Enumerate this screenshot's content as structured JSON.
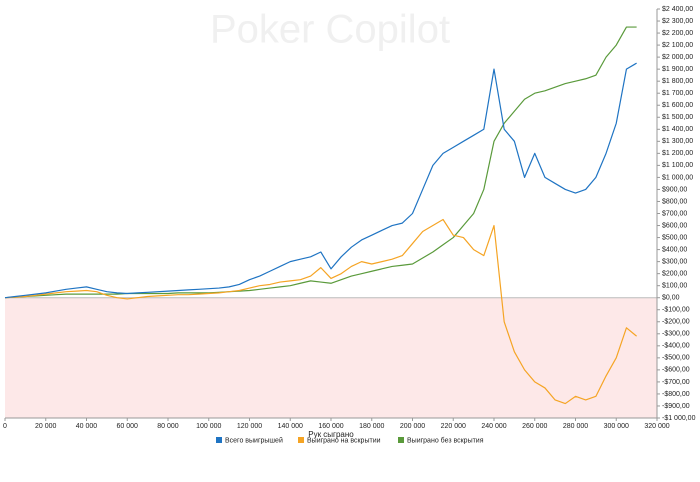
{
  "chart_data": {
    "type": "line",
    "watermark": "Poker Copilot",
    "x_label": "Рук сыграно",
    "x": [
      0,
      5000,
      10000,
      15000,
      20000,
      25000,
      30000,
      35000,
      40000,
      45000,
      50000,
      55000,
      60000,
      65000,
      70000,
      75000,
      80000,
      85000,
      90000,
      95000,
      100000,
      105000,
      110000,
      115000,
      120000,
      125000,
      130000,
      135000,
      140000,
      145000,
      150000,
      155000,
      160000,
      165000,
      170000,
      175000,
      180000,
      185000,
      190000,
      195000,
      200000,
      205000,
      210000,
      215000,
      220000,
      225000,
      230000,
      235000,
      240000,
      245000,
      250000,
      255000,
      260000,
      265000,
      270000,
      275000,
      280000,
      285000,
      290000,
      295000,
      300000,
      305000,
      310000
    ],
    "series": [
      {
        "name": "Всего выигрышей",
        "color": "#1f74c3",
        "values": [
          0,
          10,
          20,
          30,
          40,
          55,
          70,
          80,
          90,
          70,
          50,
          40,
          35,
          40,
          45,
          50,
          55,
          60,
          65,
          70,
          75,
          80,
          90,
          110,
          150,
          180,
          220,
          260,
          300,
          320,
          340,
          380,
          240,
          340,
          420,
          480,
          520,
          560,
          600,
          620,
          700,
          900,
          1100,
          1200,
          1250,
          1300,
          1350,
          1400,
          1900,
          1400,
          1300,
          1000,
          1200,
          1000,
          950,
          900,
          870,
          900,
          1000,
          1200,
          1450,
          1900,
          1950
        ]
      },
      {
        "name": "Выиграно на вскрытии",
        "color": "#f5a424",
        "values": [
          0,
          5,
          10,
          20,
          30,
          40,
          50,
          55,
          60,
          50,
          20,
          0,
          -10,
          0,
          10,
          15,
          20,
          25,
          25,
          30,
          35,
          40,
          50,
          60,
          80,
          100,
          110,
          130,
          140,
          150,
          180,
          250,
          160,
          200,
          260,
          300,
          280,
          300,
          320,
          350,
          450,
          550,
          600,
          650,
          520,
          500,
          400,
          350,
          600,
          -200,
          -450,
          -600,
          -700,
          -750,
          -850,
          -880,
          -820,
          -850,
          -820,
          -650,
          -500,
          -250,
          -320
        ]
      },
      {
        "name": "Выиграно без вскрытия",
        "color": "#5a9a3b",
        "values": [
          0,
          5,
          10,
          15,
          20,
          25,
          30,
          30,
          30,
          30,
          30,
          30,
          35,
          35,
          35,
          35,
          35,
          40,
          40,
          40,
          40,
          45,
          50,
          55,
          60,
          70,
          80,
          90,
          100,
          120,
          140,
          130,
          120,
          150,
          180,
          200,
          220,
          240,
          260,
          270,
          280,
          330,
          380,
          440,
          500,
          600,
          700,
          900,
          1300,
          1450,
          1550,
          1650,
          1700,
          1720,
          1750,
          1780,
          1800,
          1820,
          1850,
          2000,
          2100,
          2250,
          2250
        ]
      }
    ],
    "xlim": [
      0,
      320000
    ],
    "xticks": [
      0,
      {
        "value": 20000,
        "label": "20 000"
      },
      {
        "value": 40000,
        "label": "40 000"
      },
      {
        "value": 60000,
        "label": "60 000"
      },
      {
        "value": 80000,
        "label": "80 000"
      },
      {
        "value": 100000,
        "label": "100 000"
      },
      {
        "value": 120000,
        "label": "120 000"
      },
      {
        "value": 140000,
        "label": "140 000"
      },
      {
        "value": 160000,
        "label": "160 000"
      },
      {
        "value": 180000,
        "label": "180 000"
      },
      {
        "value": 200000,
        "label": "200 000"
      },
      {
        "value": 220000,
        "label": "220 000"
      },
      {
        "value": 240000,
        "label": "240 000"
      },
      {
        "value": 260000,
        "label": "260 000"
      },
      {
        "value": 280000,
        "label": "280 000"
      },
      {
        "value": 300000,
        "label": "300 000"
      },
      {
        "value": 320000,
        "label": "320 000"
      }
    ],
    "ylim": [
      -1000,
      2400
    ],
    "yticks": [
      {
        "value": 2400,
        "label": "$2 400,00"
      },
      {
        "value": 2300,
        "label": "$2 300,00"
      },
      {
        "value": 2200,
        "label": "$2 200,00"
      },
      {
        "value": 2100,
        "label": "$2 100,00"
      },
      {
        "value": 2000,
        "label": "$2 000,00"
      },
      {
        "value": 1900,
        "label": "$1 900,00"
      },
      {
        "value": 1800,
        "label": "$1 800,00"
      },
      {
        "value": 1700,
        "label": "$1 700,00"
      },
      {
        "value": 1600,
        "label": "$1 600,00"
      },
      {
        "value": 1500,
        "label": "$1 500,00"
      },
      {
        "value": 1400,
        "label": "$1 400,00"
      },
      {
        "value": 1300,
        "label": "$1 300,00"
      },
      {
        "value": 1200,
        "label": "$1 200,00"
      },
      {
        "value": 1100,
        "label": "$1 100,00"
      },
      {
        "value": 1000,
        "label": "$1 000,00"
      },
      {
        "value": 900,
        "label": "$900,00"
      },
      {
        "value": 800,
        "label": "$800,00"
      },
      {
        "value": 700,
        "label": "$700,00"
      },
      {
        "value": 600,
        "label": "$600,00"
      },
      {
        "value": 500,
        "label": "$500,00"
      },
      {
        "value": 400,
        "label": "$400,00"
      },
      {
        "value": 300,
        "label": "$300,00"
      },
      {
        "value": 200,
        "label": "$200,00"
      },
      {
        "value": 100,
        "label": "$100,00"
      },
      {
        "value": 0,
        "label": "$0,00"
      },
      {
        "value": -100,
        "label": "-$100,00"
      },
      {
        "value": -200,
        "label": "-$200,00"
      },
      {
        "value": -300,
        "label": "-$300,00"
      },
      {
        "value": -400,
        "label": "-$400,00"
      },
      {
        "value": -500,
        "label": "-$500,00"
      },
      {
        "value": -600,
        "label": "-$600,00"
      },
      {
        "value": -700,
        "label": "-$700,00"
      },
      {
        "value": -800,
        "label": "-$800,00"
      },
      {
        "value": -900,
        "label": "-$900,00"
      },
      {
        "value": -1000,
        "label": "-$1 000,00"
      }
    ]
  }
}
